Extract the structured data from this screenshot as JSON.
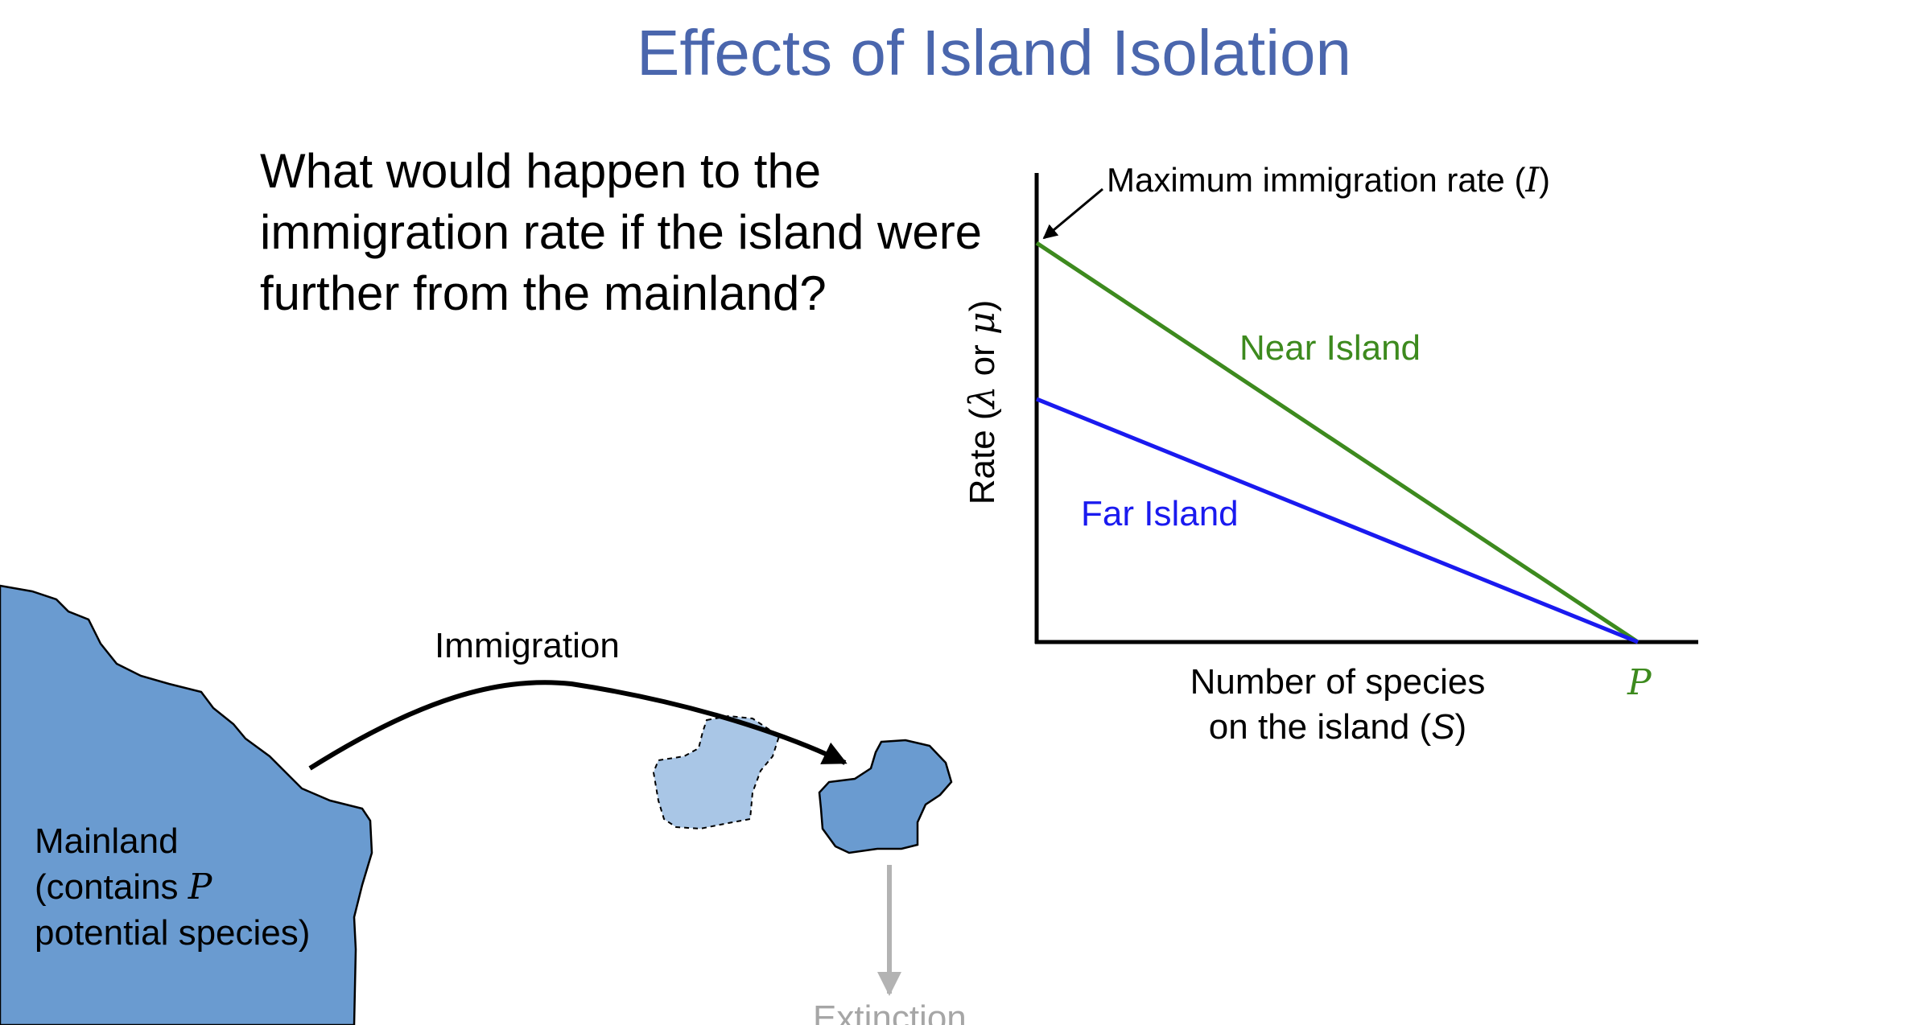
{
  "title": "Effects of Island Isolation",
  "question": "What would happen to the immigration rate if the island were further from the mainland?",
  "diagram": {
    "mainland_label_line1": "Mainland",
    "mainland_label_line2_prefix": "(contains ",
    "mainland_label_symbol": "P",
    "mainland_label_line3": "potential species)",
    "immigration_label": "Immigration",
    "extinction_label": "Extinction",
    "colors": {
      "mainland": "#6a9bd0",
      "island": "#6a9bd0",
      "ghost_island": "#a9c6e6",
      "extinction_arrow": "#b3b3b3",
      "extinction_text": "#a6a6a6"
    }
  },
  "graph": {
    "y_label_prefix": "Rate (",
    "y_label_lambda": "λ",
    "y_label_or": " or ",
    "y_label_mu": "μ",
    "y_label_suffix": ")",
    "x_label_line1": "Number of species",
    "x_label_line2_prefix": "on the island (",
    "x_label_symbol": "S",
    "x_label_line2_suffix": ")",
    "p_label": "P",
    "max_label_prefix": "Maximum immigration rate (",
    "max_label_symbol": "I",
    "max_label_suffix": ")",
    "near_label": "Near Island",
    "far_label": "Far Island",
    "colors": {
      "near": "#3d8a1e",
      "far": "#1a1aef",
      "axes": "#000000"
    }
  }
}
